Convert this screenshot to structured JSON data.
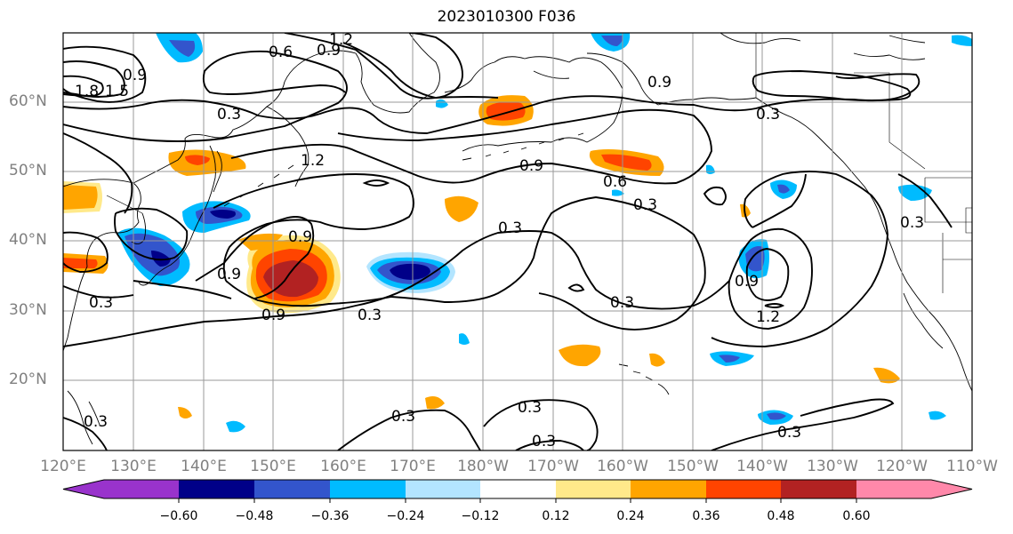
{
  "title": "2023010300 F036",
  "lat_labels": [
    "60°N",
    "50°N",
    "40°N",
    "30°N",
    "20°N"
  ],
  "lon_labels": [
    "120°E",
    "130°E",
    "140°E",
    "150°E",
    "160°E",
    "170°E",
    "180°W",
    "170°W",
    "160°W",
    "150°W",
    "140°W",
    "130°W",
    "120°W",
    "110°W"
  ],
  "contour_labels": {
    "c0": "0.6",
    "c1": "0.9",
    "c2": "1.2",
    "c3": "0.3",
    "c4": "1.8",
    "c5": "1.5",
    "c6": "1.2",
    "c7": "0.9",
    "c8": "0.3",
    "c9": "0.9",
    "c10": "0.6",
    "c11": "0.3",
    "c12": "0.3",
    "c13": "0.9",
    "c14": "0.9",
    "c15": "0.9",
    "c16": "0.3",
    "c17": "0.3",
    "c18": "0.9",
    "c19": "0.3",
    "c20": "0.9",
    "c21": "1.2",
    "c22": "0.3",
    "c23": "0.3",
    "c24": "0.3",
    "c25": "0.3",
    "c26": "0.3",
    "c27": "0.3"
  },
  "colorbar": {
    "ticks": [
      "−0.60",
      "−0.48",
      "−0.36",
      "−0.24",
      "−0.12",
      "0.12",
      "0.24",
      "0.36",
      "0.48",
      "0.60"
    ],
    "colors": [
      "#9933cc",
      "#000088",
      "#3355cc",
      "#00bbff",
      "#b3e5ff",
      "#ffffff",
      "#ffe98a",
      "#ffa500",
      "#ff4400",
      "#b22222",
      "#ff88aa"
    ]
  }
}
